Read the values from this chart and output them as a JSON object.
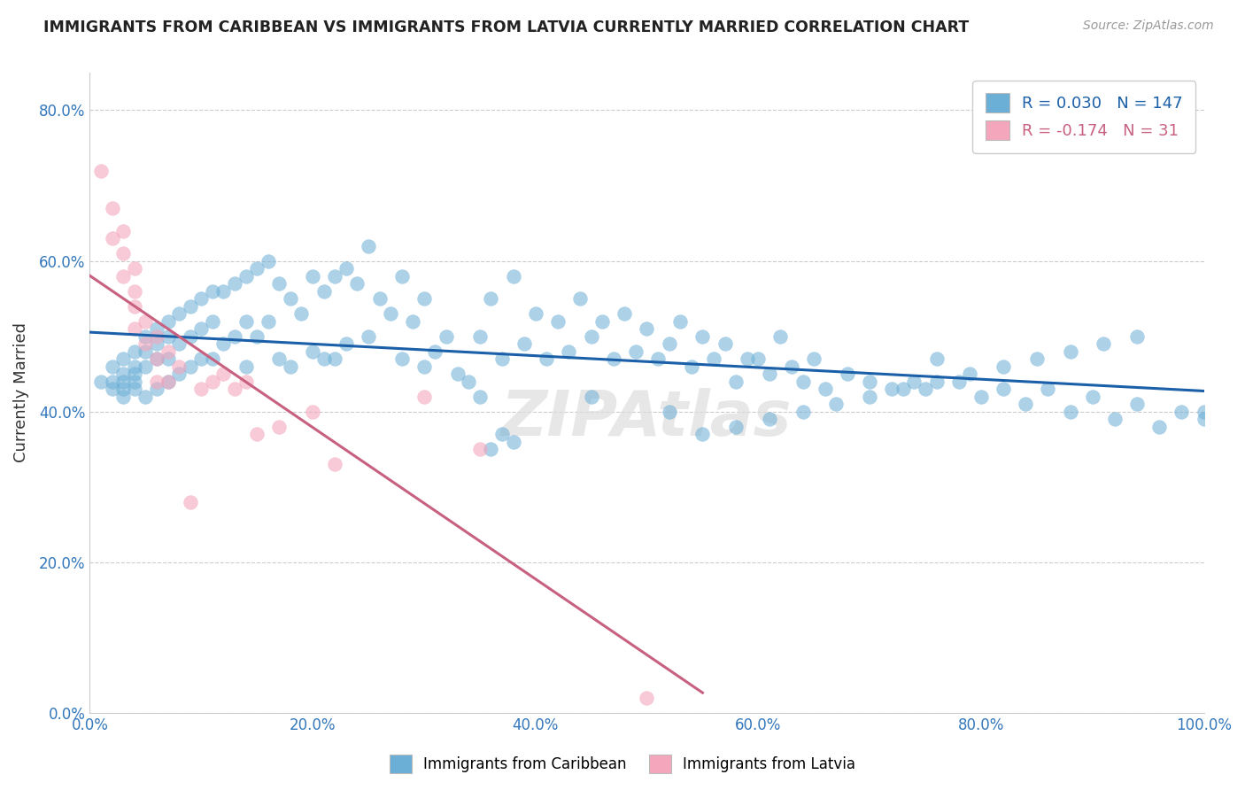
{
  "title": "IMMIGRANTS FROM CARIBBEAN VS IMMIGRANTS FROM LATVIA CURRENTLY MARRIED CORRELATION CHART",
  "source_text": "Source: ZipAtlas.com",
  "ylabel": "Currently Married",
  "xlim": [
    0.0,
    1.0
  ],
  "ylim": [
    0.0,
    0.85
  ],
  "yticks": [
    0.0,
    0.2,
    0.4,
    0.6,
    0.8
  ],
  "ytick_labels": [
    "0.0%",
    "20.0%",
    "40.0%",
    "60.0%",
    "80.0%"
  ],
  "xticks": [
    0.0,
    0.2,
    0.4,
    0.6,
    0.8,
    1.0
  ],
  "xtick_labels": [
    "0.0%",
    "20.0%",
    "40.0%",
    "60.0%",
    "80.0%",
    "100.0%"
  ],
  "blue_color": "#6baed6",
  "pink_color": "#f4a6bc",
  "blue_line_color": "#1a5fa8",
  "pink_line_color": "#c86080",
  "grid_color": "#cccccc",
  "watermark_text": "ZIPAtlas",
  "blue_R": 0.03,
  "blue_N": 147,
  "pink_R": -0.174,
  "pink_N": 31,
  "blue_scatter_x": [
    0.01,
    0.02,
    0.02,
    0.02,
    0.03,
    0.03,
    0.03,
    0.03,
    0.03,
    0.04,
    0.04,
    0.04,
    0.04,
    0.04,
    0.05,
    0.05,
    0.05,
    0.05,
    0.06,
    0.06,
    0.06,
    0.06,
    0.07,
    0.07,
    0.07,
    0.07,
    0.08,
    0.08,
    0.08,
    0.09,
    0.09,
    0.09,
    0.1,
    0.1,
    0.1,
    0.11,
    0.11,
    0.11,
    0.12,
    0.12,
    0.13,
    0.13,
    0.14,
    0.14,
    0.14,
    0.15,
    0.15,
    0.16,
    0.16,
    0.17,
    0.17,
    0.18,
    0.18,
    0.19,
    0.2,
    0.2,
    0.21,
    0.21,
    0.22,
    0.22,
    0.23,
    0.23,
    0.24,
    0.25,
    0.25,
    0.26,
    0.27,
    0.28,
    0.28,
    0.29,
    0.3,
    0.3,
    0.31,
    0.32,
    0.33,
    0.34,
    0.35,
    0.35,
    0.36,
    0.37,
    0.38,
    0.39,
    0.4,
    0.41,
    0.42,
    0.43,
    0.44,
    0.45,
    0.45,
    0.46,
    0.47,
    0.48,
    0.49,
    0.5,
    0.51,
    0.52,
    0.53,
    0.54,
    0.55,
    0.56,
    0.57,
    0.58,
    0.59,
    0.6,
    0.61,
    0.62,
    0.63,
    0.64,
    0.65,
    0.66,
    0.68,
    0.7,
    0.72,
    0.74,
    0.75,
    0.76,
    0.78,
    0.8,
    0.82,
    0.84,
    0.86,
    0.88,
    0.9,
    0.92,
    0.94,
    0.96,
    0.98,
    1.0,
    0.36,
    0.37,
    0.38,
    0.52,
    0.55,
    0.58,
    0.61,
    0.64,
    0.67,
    0.7,
    0.73,
    0.76,
    0.79,
    0.82,
    0.85,
    0.88,
    0.91,
    0.94,
    1.0
  ],
  "blue_scatter_y": [
    0.44,
    0.46,
    0.44,
    0.43,
    0.47,
    0.45,
    0.44,
    0.43,
    0.42,
    0.48,
    0.46,
    0.45,
    0.44,
    0.43,
    0.5,
    0.48,
    0.46,
    0.42,
    0.51,
    0.49,
    0.47,
    0.43,
    0.52,
    0.5,
    0.47,
    0.44,
    0.53,
    0.49,
    0.45,
    0.54,
    0.5,
    0.46,
    0.55,
    0.51,
    0.47,
    0.56,
    0.52,
    0.47,
    0.56,
    0.49,
    0.57,
    0.5,
    0.58,
    0.52,
    0.46,
    0.59,
    0.5,
    0.6,
    0.52,
    0.57,
    0.47,
    0.55,
    0.46,
    0.53,
    0.58,
    0.48,
    0.56,
    0.47,
    0.58,
    0.47,
    0.59,
    0.49,
    0.57,
    0.62,
    0.5,
    0.55,
    0.53,
    0.58,
    0.47,
    0.52,
    0.55,
    0.46,
    0.48,
    0.5,
    0.45,
    0.44,
    0.5,
    0.42,
    0.55,
    0.47,
    0.58,
    0.49,
    0.53,
    0.47,
    0.52,
    0.48,
    0.55,
    0.5,
    0.42,
    0.52,
    0.47,
    0.53,
    0.48,
    0.51,
    0.47,
    0.49,
    0.52,
    0.46,
    0.5,
    0.47,
    0.49,
    0.44,
    0.47,
    0.47,
    0.45,
    0.5,
    0.46,
    0.44,
    0.47,
    0.43,
    0.45,
    0.44,
    0.43,
    0.44,
    0.43,
    0.47,
    0.44,
    0.42,
    0.43,
    0.41,
    0.43,
    0.4,
    0.42,
    0.39,
    0.41,
    0.38,
    0.4,
    0.39,
    0.35,
    0.37,
    0.36,
    0.4,
    0.37,
    0.38,
    0.39,
    0.4,
    0.41,
    0.42,
    0.43,
    0.44,
    0.45,
    0.46,
    0.47,
    0.48,
    0.49,
    0.5,
    0.4
  ],
  "pink_scatter_x": [
    0.01,
    0.02,
    0.02,
    0.03,
    0.03,
    0.03,
    0.04,
    0.04,
    0.04,
    0.04,
    0.05,
    0.05,
    0.06,
    0.06,
    0.06,
    0.07,
    0.07,
    0.08,
    0.09,
    0.1,
    0.11,
    0.12,
    0.13,
    0.14,
    0.15,
    0.17,
    0.2,
    0.22,
    0.3,
    0.35,
    0.5
  ],
  "pink_scatter_y": [
    0.72,
    0.67,
    0.63,
    0.64,
    0.61,
    0.58,
    0.59,
    0.56,
    0.54,
    0.51,
    0.52,
    0.49,
    0.5,
    0.47,
    0.44,
    0.48,
    0.44,
    0.46,
    0.28,
    0.43,
    0.44,
    0.45,
    0.43,
    0.44,
    0.37,
    0.38,
    0.4,
    0.33,
    0.42,
    0.35,
    0.02
  ]
}
